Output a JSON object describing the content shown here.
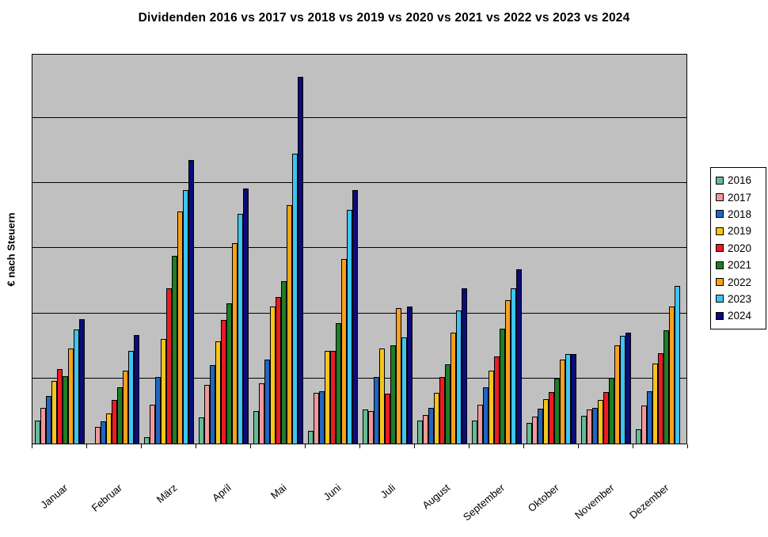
{
  "chart_data": {
    "type": "bar",
    "title": "Dividenden 2016 vs 2017 vs 2018 vs 2019 vs 2020 vs 2021 vs 2022 vs 2023 vs 2024",
    "xlabel": "",
    "ylabel": "€ nach Steuern",
    "categories": [
      "Januar",
      "Februar",
      "März",
      "April",
      "Mai",
      "Juni",
      "Juli",
      "August",
      "September",
      "Oktober",
      "November",
      "Dezember"
    ],
    "series": [
      {
        "name": "2016",
        "color": "#66BA94",
        "values": [
          0.35,
          0.0,
          0.1,
          0.4,
          0.5,
          0.2,
          0.52,
          0.35,
          0.35,
          0.32,
          0.43,
          0.22
        ]
      },
      {
        "name": "2017",
        "color": "#F0999B",
        "values": [
          0.55,
          0.25,
          0.6,
          0.9,
          0.92,
          0.78,
          0.5,
          0.44,
          0.6,
          0.41,
          0.52,
          0.58
        ]
      },
      {
        "name": "2018",
        "color": "#2165C0",
        "values": [
          0.73,
          0.34,
          1.02,
          1.2,
          1.29,
          0.8,
          1.02,
          0.55,
          0.86,
          0.53,
          0.55,
          0.8
        ]
      },
      {
        "name": "2019",
        "color": "#F6C51C",
        "values": [
          0.96,
          0.46,
          1.61,
          1.57,
          2.1,
          1.43,
          1.46,
          0.78,
          1.12,
          0.68,
          0.67,
          1.23
        ]
      },
      {
        "name": "2020",
        "color": "#EB1C24",
        "values": [
          1.15,
          0.67,
          2.38,
          1.9,
          2.25,
          1.42,
          0.77,
          1.02,
          1.34,
          0.79,
          0.79,
          1.39
        ]
      },
      {
        "name": "2021",
        "color": "#1E7D26",
        "values": [
          1.03,
          0.87,
          2.88,
          2.16,
          2.5,
          1.85,
          1.51,
          1.22,
          1.76,
          1.0,
          1.01,
          1.74
        ]
      },
      {
        "name": "2022",
        "color": "#F8A01D",
        "values": [
          1.46,
          1.12,
          3.57,
          3.08,
          3.66,
          2.84,
          2.08,
          1.7,
          2.2,
          1.29,
          1.51,
          2.11
        ]
      },
      {
        "name": "2023",
        "color": "#3EC4F0",
        "values": [
          1.75,
          1.42,
          3.89,
          3.53,
          4.45,
          3.59,
          1.63,
          2.05,
          2.38,
          1.37,
          1.65,
          2.42
        ]
      },
      {
        "name": "2024",
        "color": "#0B0B7A",
        "values": [
          1.91,
          1.67,
          4.36,
          3.92,
          5.64,
          3.9,
          2.11,
          2.38,
          2.68,
          1.37,
          1.7,
          0.0
        ]
      }
    ],
    "ylim": [
      0,
      6
    ],
    "y_axis_numeric_labels_shown": false,
    "units_note": "y values estimated in gridline units; the y axis displays no numeric tick labels in the screenshot",
    "gridlines": "horizontal, 5 internal lines (black) on gray plot background",
    "legend_position": "right",
    "plot_background": "#C0C0C0",
    "page_background": "#FFFFFF"
  },
  "legend": {
    "entries": [
      "2016",
      "2017",
      "2018",
      "2019",
      "2020",
      "2021",
      "2022",
      "2023",
      "2024"
    ]
  }
}
